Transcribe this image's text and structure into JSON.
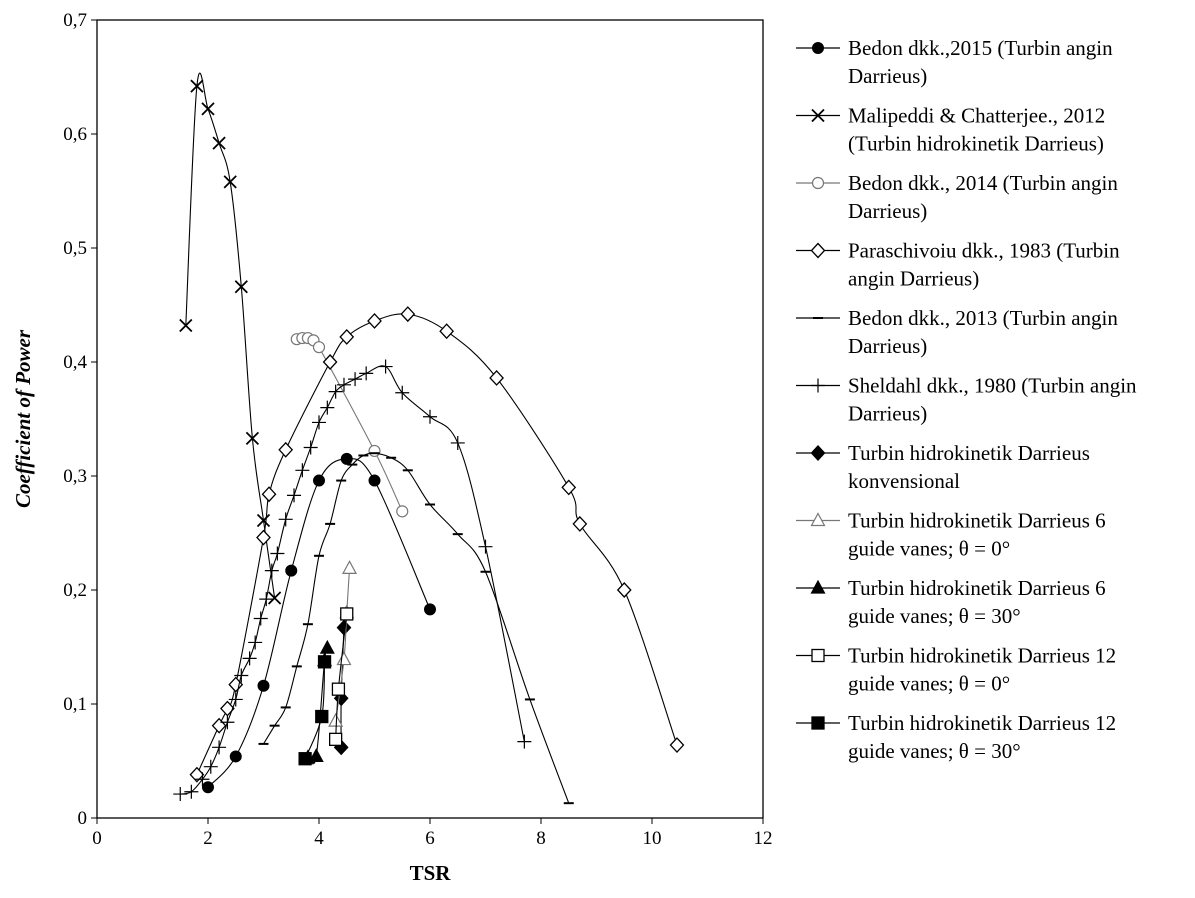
{
  "chart_data": {
    "type": "scatter",
    "xlabel": "TSR",
    "ylabel": "Coefficient of Power",
    "xlim": [
      0,
      12
    ],
    "ylim": [
      0,
      0.7
    ],
    "x_ticks": [
      "0",
      "2",
      "4",
      "6",
      "8",
      "10",
      "12"
    ],
    "y_ticks": [
      "0",
      "0,1",
      "0,2",
      "0,3",
      "0,4",
      "0,5",
      "0,6",
      "0,7"
    ],
    "grid": false,
    "legend_position": "right",
    "series": [
      {
        "name": "Bedon dkk.,2015 (Turbin angin Darrieus)",
        "legend_lines": [
          "Bedon dkk.,2015 (Turbin angin",
          "Darrieus)"
        ],
        "marker": "circle-filled",
        "color": "#000000",
        "x": [
          2.0,
          2.5,
          3.0,
          3.5,
          4.0,
          4.5,
          5.0,
          6.0
        ],
        "y": [
          0.027,
          0.054,
          0.116,
          0.217,
          0.296,
          0.315,
          0.296,
          0.183
        ]
      },
      {
        "name": "Malipeddi & Chatterjee., 2012 (Turbin hidrokinetik Darrieus)",
        "legend_lines": [
          "Malipeddi & Chatterjee., 2012",
          "(Turbin hidrokinetik Darrieus)"
        ],
        "marker": "x",
        "color": "#000000",
        "x": [
          1.6,
          1.8,
          2.0,
          2.2,
          2.4,
          2.6,
          2.8,
          3.0,
          3.2
        ],
        "y": [
          0.432,
          0.642,
          0.622,
          0.592,
          0.558,
          0.466,
          0.333,
          0.261,
          0.193
        ]
      },
      {
        "name": "Bedon dkk., 2014 (Turbin angin Darrieus)",
        "legend_lines": [
          "Bedon dkk., 2014 (Turbin angin",
          "Darrieus)"
        ],
        "marker": "circle-open",
        "color": "#777777",
        "x": [
          3.6,
          3.7,
          3.8,
          3.9,
          4.0,
          5.0,
          5.5
        ],
        "y": [
          0.42,
          0.421,
          0.421,
          0.419,
          0.413,
          0.322,
          0.269
        ]
      },
      {
        "name": "Paraschivoiu dkk., 1983 (Turbin angin Darrieus)",
        "legend_lines": [
          "Paraschivoiu dkk., 1983 (Turbin",
          "angin Darrieus)"
        ],
        "marker": "diamond-open",
        "color": "#000000",
        "x": [
          1.8,
          2.2,
          2.35,
          2.5,
          3.0,
          3.1,
          3.4,
          4.2,
          4.5,
          5.0,
          5.6,
          6.3,
          7.2,
          8.5,
          8.7,
          9.5,
          10.45
        ],
        "y": [
          0.038,
          0.081,
          0.096,
          0.117,
          0.246,
          0.284,
          0.323,
          0.4,
          0.422,
          0.436,
          0.442,
          0.427,
          0.386,
          0.29,
          0.258,
          0.2,
          0.064
        ]
      },
      {
        "name": "Bedon dkk., 2013 (Turbin angin Darrieus)",
        "legend_lines": [
          "Bedon dkk., 2013 (Turbin angin",
          "Darrieus)"
        ],
        "marker": "dash",
        "color": "#000000",
        "x": [
          3.0,
          3.2,
          3.4,
          3.6,
          3.8,
          4.0,
          4.2,
          4.4,
          4.6,
          4.8,
          5.0,
          5.3,
          5.6,
          6.0,
          6.5,
          7.0,
          7.8,
          8.5
        ],
        "y": [
          0.065,
          0.081,
          0.097,
          0.133,
          0.17,
          0.23,
          0.258,
          0.296,
          0.31,
          0.318,
          0.32,
          0.316,
          0.305,
          0.275,
          0.249,
          0.216,
          0.104,
          0.013
        ]
      },
      {
        "name": "Sheldahl dkk., 1980 (Turbin angin Darrieus)",
        "legend_lines": [
          "Sheldahl dkk., 1980 (Turbin angin",
          "Darrieus)"
        ],
        "marker": "plus",
        "color": "#000000",
        "x": [
          1.5,
          1.7,
          1.9,
          2.05,
          2.2,
          2.35,
          2.5,
          2.6,
          2.75,
          2.85,
          2.95,
          3.05,
          3.15,
          3.25,
          3.4,
          3.55,
          3.7,
          3.85,
          4.0,
          4.15,
          4.3,
          4.45,
          4.65,
          4.85,
          5.2,
          5.5,
          6.0,
          6.5,
          7.0,
          7.7
        ],
        "y": [
          0.021,
          0.023,
          0.034,
          0.045,
          0.062,
          0.084,
          0.104,
          0.125,
          0.14,
          0.154,
          0.175,
          0.192,
          0.217,
          0.232,
          0.262,
          0.283,
          0.305,
          0.325,
          0.347,
          0.36,
          0.374,
          0.38,
          0.385,
          0.39,
          0.396,
          0.373,
          0.352,
          0.329,
          0.238,
          0.067
        ]
      },
      {
        "name": "Turbin hidrokinetik Darrieus konvensional",
        "legend_lines": [
          "Turbin hidrokinetik Darrieus",
          "konvensional"
        ],
        "marker": "diamond-filled",
        "color": "#000000",
        "x": [
          4.4,
          4.4,
          4.45
        ],
        "y": [
          0.062,
          0.105,
          0.167
        ]
      },
      {
        "name": "Turbin hidrokinetik Darrieus 6 guide vanes; θ = 0°",
        "legend_lines": [
          "Turbin hidrokinetik Darrieus 6",
          "guide vanes; θ = 0°"
        ],
        "marker": "triangle-open",
        "color": "#777777",
        "x": [
          4.3,
          4.45,
          4.5,
          4.55
        ],
        "y": [
          0.085,
          0.139,
          0.18,
          0.219
        ]
      },
      {
        "name": "Turbin hidrokinetik Darrieus 6 guide vanes; θ = 30°",
        "legend_lines": [
          "Turbin hidrokinetik Darrieus 6",
          "guide vanes; θ = 30°"
        ],
        "marker": "triangle-filled",
        "color": "#000000",
        "x": [
          3.8,
          3.95,
          4.1,
          4.15
        ],
        "y": [
          0.053,
          0.054,
          0.138,
          0.149
        ]
      },
      {
        "name": "Turbin hidrokinetik Darrieus 12 guide vanes; θ = 0°",
        "legend_lines": [
          "Turbin hidrokinetik Darrieus 12",
          "guide vanes; θ = 0°"
        ],
        "marker": "square-open",
        "color": "#000000",
        "x": [
          4.3,
          4.35,
          4.5
        ],
        "y": [
          0.069,
          0.113,
          0.179
        ]
      },
      {
        "name": "Turbin hidrokinetik Darrieus 12 guide vanes; θ = 30°",
        "legend_lines": [
          "Turbin hidrokinetik Darrieus 12",
          "guide vanes; θ = 30°"
        ],
        "marker": "square-filled",
        "color": "#000000",
        "x": [
          3.75,
          4.05,
          4.1
        ],
        "y": [
          0.052,
          0.089,
          0.137
        ]
      }
    ]
  }
}
